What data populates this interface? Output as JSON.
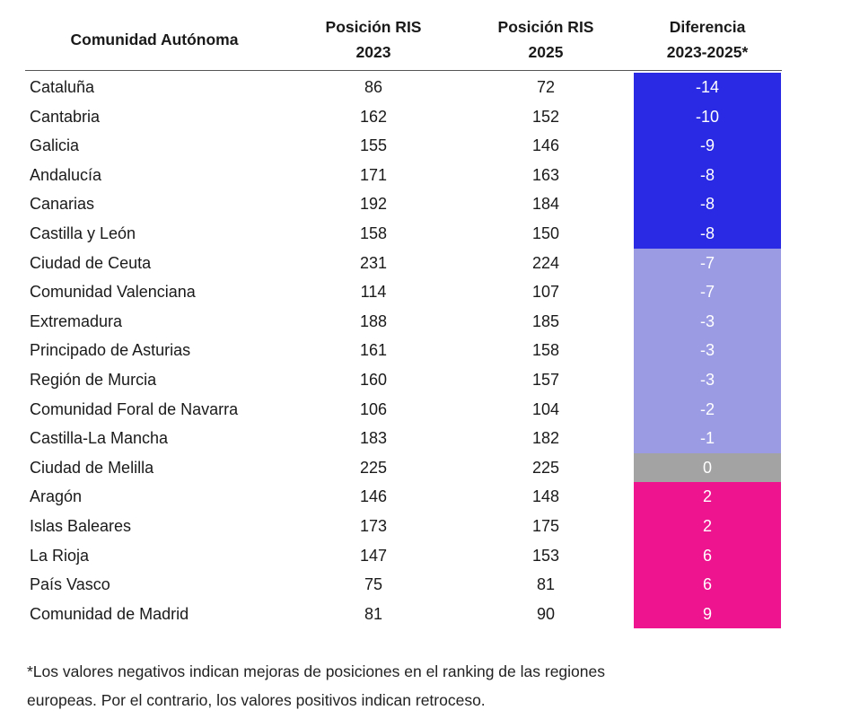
{
  "table": {
    "headers": [
      [
        "Comunidad Autónoma"
      ],
      [
        "Posición RIS",
        "2023"
      ],
      [
        "Posición RIS",
        "2025"
      ],
      [
        "Diferencia",
        "2023-2025*"
      ]
    ],
    "rows": [
      [
        "Cataluña",
        86,
        72,
        -14
      ],
      [
        "Cantabria",
        162,
        152,
        -10
      ],
      [
        "Galicia",
        155,
        146,
        -9
      ],
      [
        "Andalucía",
        171,
        163,
        -8
      ],
      [
        "Canarias",
        192,
        184,
        -8
      ],
      [
        "Castilla y León",
        158,
        150,
        -8
      ],
      [
        "Ciudad de Ceuta",
        231,
        224,
        -7
      ],
      [
        "Comunidad Valenciana",
        114,
        107,
        -7
      ],
      [
        "Extremadura",
        188,
        185,
        -3
      ],
      [
        "Principado de Asturias",
        161,
        158,
        -3
      ],
      [
        "Región de Murcia",
        160,
        157,
        -3
      ],
      [
        "Comunidad Foral de Navarra",
        106,
        104,
        -2
      ],
      [
        "Castilla-La Mancha",
        183,
        182,
        -1
      ],
      [
        "Ciudad de Melilla",
        225,
        225,
        0
      ],
      [
        "Aragón",
        146,
        148,
        2
      ],
      [
        "Islas Baleares",
        173,
        175,
        2
      ],
      [
        "La Rioja",
        147,
        153,
        6
      ],
      [
        "País Vasco",
        75,
        81,
        6
      ],
      [
        "Comunidad de Madrid",
        81,
        90,
        9
      ]
    ],
    "diff_colors": [
      "#2a2ae4",
      "#2a2ae4",
      "#2a2ae4",
      "#2a2ae4",
      "#2a2ae4",
      "#2a2ae4",
      "#9b9be4",
      "#9b9be4",
      "#9b9be4",
      "#9b9be4",
      "#9b9be4",
      "#9b9be4",
      "#9b9be4",
      "#a3a3a3",
      "#ee148f",
      "#ee148f",
      "#ee148f",
      "#ee148f",
      "#ee148f"
    ]
  },
  "footnote": [
    "*Los valores negativos indican mejoras de posiciones en el ranking de las regiones",
    "europeas. Por el contrario, los valores positivos indican retroceso."
  ]
}
